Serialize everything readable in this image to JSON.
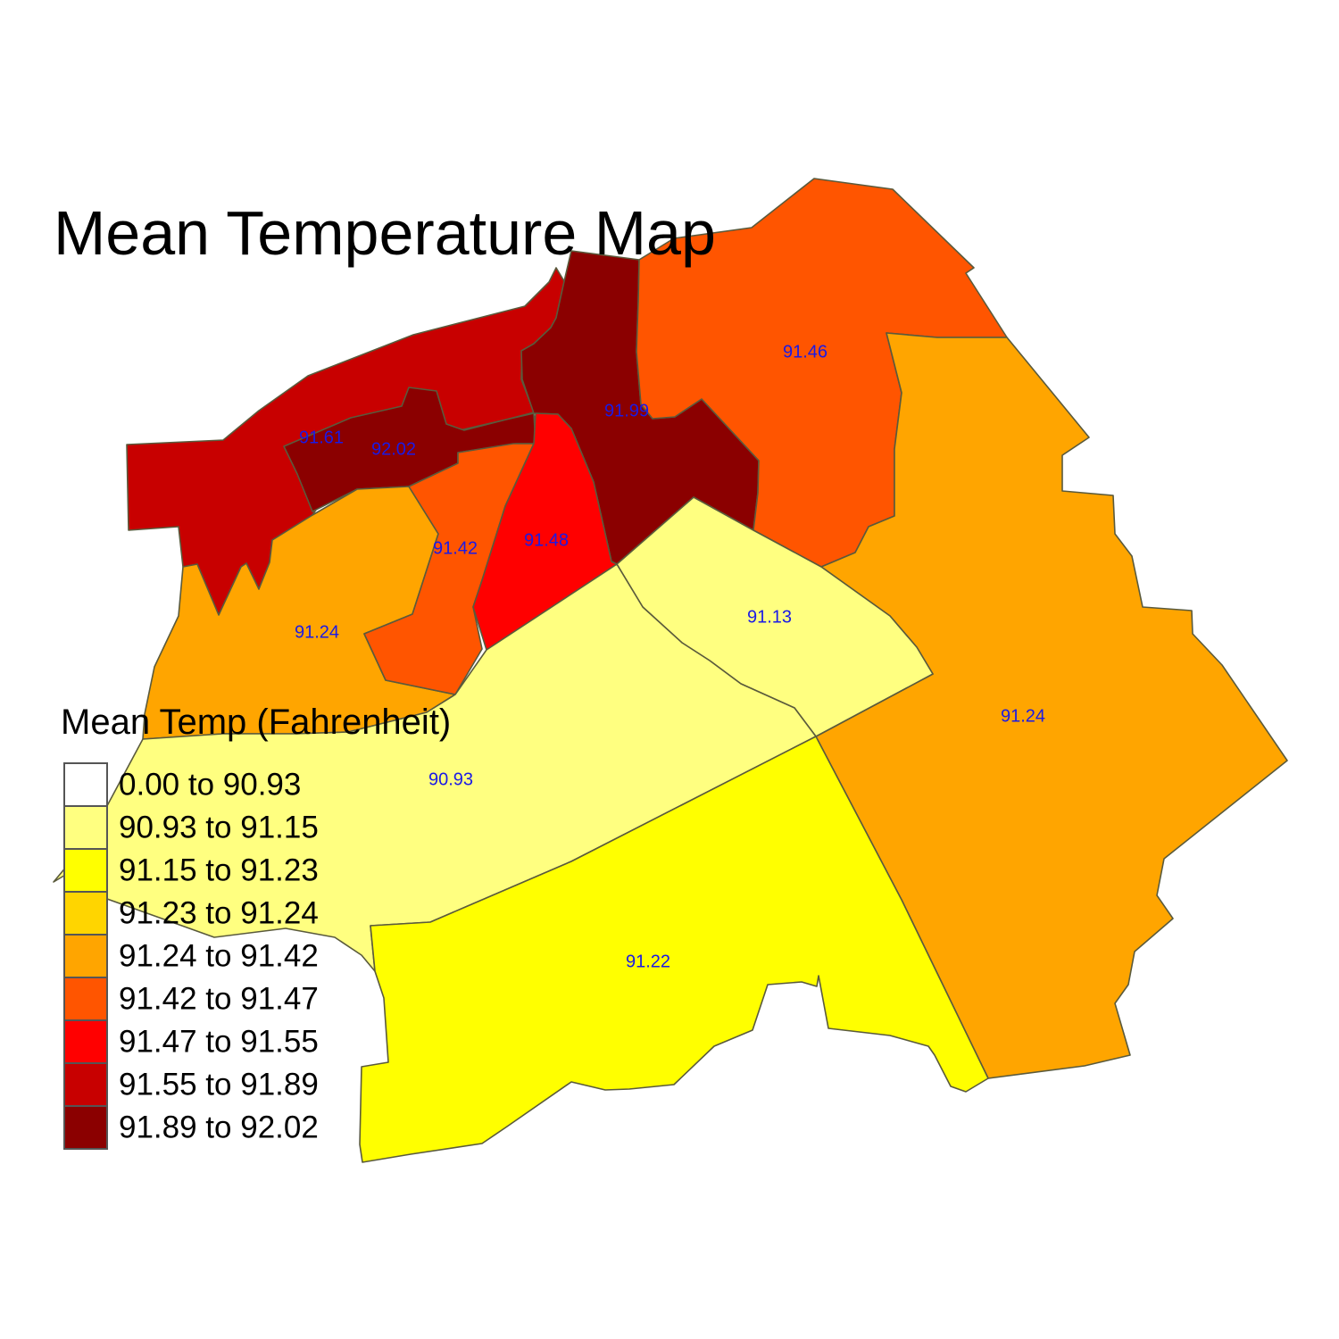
{
  "title": "Mean Temperature Map",
  "legend": {
    "title": "Mean Temp (Fahrenheit)",
    "classes": [
      {
        "label": "0.00 to 90.93",
        "color": "#ffffff"
      },
      {
        "label": "90.93 to 91.15",
        "color": "#ffff80"
      },
      {
        "label": "91.15 to 91.23",
        "color": "#ffff00"
      },
      {
        "label": "91.23 to 91.24",
        "color": "#ffd500"
      },
      {
        "label": "91.24 to 91.42",
        "color": "#ffa500"
      },
      {
        "label": "91.42 to 91.47",
        "color": "#ff5500"
      },
      {
        "label": "91.47 to 91.55",
        "color": "#ff0000"
      },
      {
        "label": "91.55 to 91.89",
        "color": "#c80000"
      },
      {
        "label": "91.89 to 92.02",
        "color": "#8b0000"
      }
    ]
  },
  "regions": [
    {
      "id": "northwest",
      "value": "91.61",
      "color": "#c80000"
    },
    {
      "id": "central-north",
      "value": "91.99",
      "color": "#8b0000"
    },
    {
      "id": "northwest-inner",
      "value": "92.02",
      "color": "#8b0000"
    },
    {
      "id": "northeast",
      "value": "91.46",
      "color": "#ff5500"
    },
    {
      "id": "east",
      "value": "91.24",
      "color": "#ffa500"
    },
    {
      "id": "west",
      "value": "91.24",
      "color": "#ffa500"
    },
    {
      "id": "west-central",
      "value": "91.42",
      "color": "#ff5500"
    },
    {
      "id": "central",
      "value": "91.48",
      "color": "#ff0000"
    },
    {
      "id": "central-east",
      "value": "91.13",
      "color": "#ffff80"
    },
    {
      "id": "southwest",
      "value": "90.93",
      "color": "#ffff80"
    },
    {
      "id": "south",
      "value": "91.22",
      "color": "#ffff00"
    }
  ]
}
